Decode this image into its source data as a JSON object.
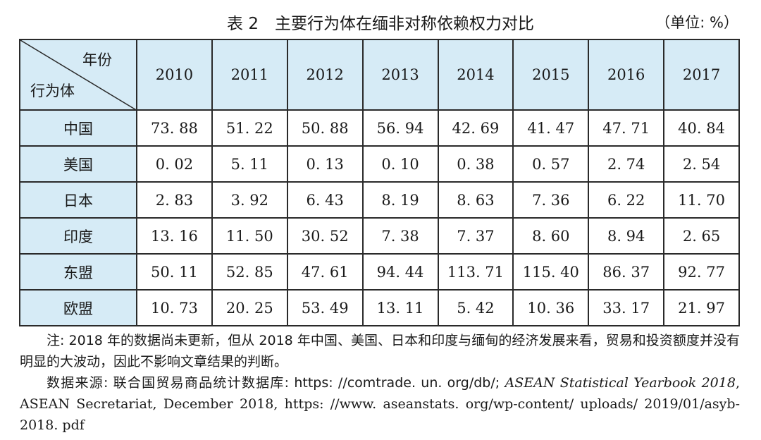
{
  "header": {
    "title": "表 2　主要行为体在缅非对称依赖权力对比",
    "unit": "（单位: %）"
  },
  "table": {
    "corner_top": "年份",
    "corner_bottom": "行为体",
    "columns": [
      "2010",
      "2011",
      "2012",
      "2013",
      "2014",
      "2015",
      "2016",
      "2017"
    ],
    "rows": [
      [
        "中国",
        "73. 88",
        "51. 22",
        "50. 88",
        "56. 94",
        "42. 69",
        "41. 47",
        "47. 71",
        "40. 84"
      ],
      [
        "美国",
        "0. 02",
        "5. 11",
        "0. 13",
        "0. 10",
        "0. 38",
        "0. 57",
        "2. 74",
        "2. 54"
      ],
      [
        "日本",
        "2. 83",
        "3. 92",
        "6. 43",
        "8. 19",
        "8. 63",
        "7. 36",
        "6. 22",
        "11. 70"
      ],
      [
        "印度",
        "13. 16",
        "11. 50",
        "30. 52",
        "7. 38",
        "7. 37",
        "8. 60",
        "8. 94",
        "2. 65"
      ],
      [
        "东盟",
        "50. 11",
        "52. 85",
        "47. 61",
        "94. 44",
        "113. 71",
        "115. 40",
        "86. 37",
        "92. 77"
      ],
      [
        "欧盟",
        "10. 73",
        "20. 25",
        "53. 49",
        "13. 11",
        "5. 42",
        "10. 36",
        "33. 17",
        "21. 97"
      ]
    ]
  },
  "notes": {
    "note": "注: 2018 年的数据尚未更新，但从 2018 年中国、美国、日本和印度与缅甸的经济发展来看，贸易和投资额度并没有明显的大波动，因此不影响文章结果的判断。",
    "source_prefix": "数据来源: 联合国贸易商品统计数据库: https: //comtrade. un. org/db/;",
    "source_italic": "ASEAN Statistical Yearbook 2018",
    "source_suffix": ", ASEAN Secretariat, December 2018, https: //www. aseanstats. org/wp-content/ uploads/ 2019/01/asyb-2018. pdf"
  }
}
